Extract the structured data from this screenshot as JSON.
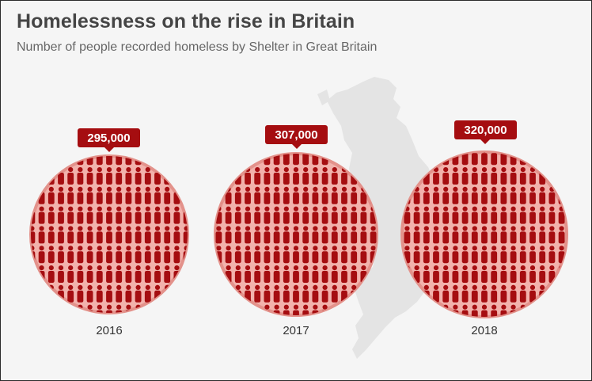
{
  "title": "Homelessness on the rise in Britain",
  "subtitle": "Number of people recorded homeless by Shelter in Great Britain",
  "colors": {
    "background": "#f5f5f5",
    "circle_fill": "#f2b2ac",
    "circle_ring": "#e3928b",
    "figure": "#a50d10",
    "badge": "#a50d10",
    "map": "#e4e4e4"
  },
  "icons": {
    "figure": "person-icon",
    "background": "great-britain-map"
  },
  "chart_data": {
    "type": "pictogram",
    "categories": [
      "2016",
      "2017",
      "2018"
    ],
    "values": [
      295000,
      307000,
      320000
    ],
    "value_labels": [
      "295,000",
      "307,000",
      "320,000"
    ],
    "title": "Homelessness on the rise in Britain",
    "subtitle": "Number of people recorded homeless by Shelter in Great Britain",
    "xlabel": "",
    "ylabel": ""
  }
}
